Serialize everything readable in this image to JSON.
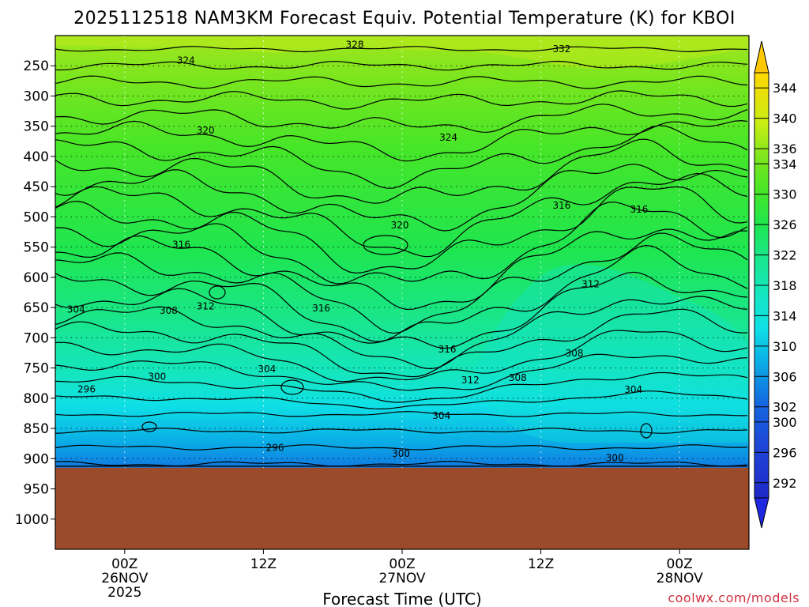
{
  "chart_data": {
    "type": "heatmap",
    "title": "2025112518 NAM3KM Forecast Equiv. Potential Temperature (K) for KBOI",
    "xlabel": "Forecast Time (UTC)",
    "ylabel": "",
    "x_ticks": [
      {
        "hour": 0,
        "lines": [
          "00Z",
          "26NOV",
          "2025"
        ]
      },
      {
        "hour": 12,
        "lines": [
          "12Z"
        ]
      },
      {
        "hour": 24,
        "lines": [
          "00Z",
          "27NOV"
        ]
      },
      {
        "hour": 36,
        "lines": [
          "12Z"
        ]
      },
      {
        "hour": 48,
        "lines": [
          "00Z",
          "28NOV"
        ]
      }
    ],
    "x_range_hours": [
      -6,
      54
    ],
    "y_ticks_hpa": [
      250,
      300,
      350,
      400,
      450,
      500,
      550,
      600,
      650,
      700,
      750,
      800,
      850,
      900,
      950,
      1000
    ],
    "y_range_hpa": [
      200,
      1050
    ],
    "surface_pressure_hpa": 915,
    "colorbar_ticks": [
      344,
      340,
      336,
      334,
      330,
      326,
      322,
      318,
      314,
      310,
      306,
      302,
      300,
      296,
      292
    ],
    "colorbar_range_k": [
      290,
      346
    ],
    "contour_labels": [
      {
        "text": "328",
        "hour": 19.9,
        "hpa": 215
      },
      {
        "text": "332",
        "hour": 37.8,
        "hpa": 222
      },
      {
        "text": "324",
        "hour": 5.3,
        "hpa": 241
      },
      {
        "text": "320",
        "hour": 7.0,
        "hpa": 357
      },
      {
        "text": "324",
        "hour": 28.0,
        "hpa": 369
      },
      {
        "text": "316",
        "hour": 37.8,
        "hpa": 481
      },
      {
        "text": "316",
        "hour": 44.5,
        "hpa": 488
      },
      {
        "text": "320",
        "hour": 23.8,
        "hpa": 514
      },
      {
        "text": "316",
        "hour": 4.9,
        "hpa": 546
      },
      {
        "text": "312",
        "hour": 40.3,
        "hpa": 611
      },
      {
        "text": "304",
        "hour": -4.2,
        "hpa": 653
      },
      {
        "text": "308",
        "hour": 3.8,
        "hpa": 655
      },
      {
        "text": "312",
        "hour": 7.0,
        "hpa": 648
      },
      {
        "text": "316",
        "hour": 17.0,
        "hpa": 651
      },
      {
        "text": "316",
        "hour": 27.9,
        "hpa": 719
      },
      {
        "text": "308",
        "hour": 38.9,
        "hpa": 726
      },
      {
        "text": "304",
        "hour": 12.3,
        "hpa": 752
      },
      {
        "text": "300",
        "hour": 2.8,
        "hpa": 764
      },
      {
        "text": "312",
        "hour": 29.9,
        "hpa": 770
      },
      {
        "text": "308",
        "hour": 34.0,
        "hpa": 766
      },
      {
        "text": "296",
        "hour": -3.3,
        "hpa": 785
      },
      {
        "text": "304",
        "hour": 44.0,
        "hpa": 786
      },
      {
        "text": "304",
        "hour": 27.4,
        "hpa": 829
      },
      {
        "text": "296",
        "hour": 13.0,
        "hpa": 882
      },
      {
        "text": "300",
        "hour": 23.9,
        "hpa": 892
      },
      {
        "text": "300",
        "hour": 42.4,
        "hpa": 899
      }
    ]
  },
  "credit": "coolwx.com/models"
}
